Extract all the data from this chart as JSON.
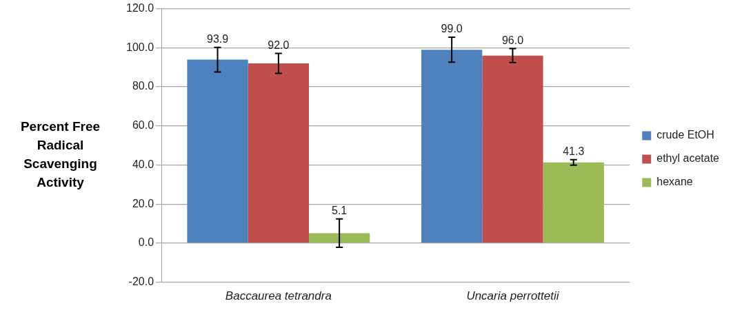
{
  "chart_data": {
    "type": "bar",
    "ylabel": "Percent  Free Radical Scavenging Activity",
    "categories": [
      "Baccaurea tetrandra",
      "Uncaria perrottetii"
    ],
    "series": [
      {
        "name": "crude EtOH",
        "color": "#4f81bd",
        "values": [
          93.9,
          99.0
        ],
        "errors": [
          6.3,
          6.4
        ],
        "value_labels": [
          "93.9",
          "99.0"
        ]
      },
      {
        "name": "ethyl acetate",
        "color": "#c0504d",
        "values": [
          92.0,
          96.0
        ],
        "errors": [
          5.1,
          3.6
        ],
        "value_labels": [
          "92.0",
          "96.0"
        ]
      },
      {
        "name": "hexane",
        "color": "#9bbb59",
        "values": [
          5.1,
          41.3
        ],
        "errors": [
          7.3,
          1.4
        ],
        "value_labels": [
          "5.1",
          "41.3"
        ]
      }
    ],
    "ylim": [
      -20,
      120
    ],
    "yticks": [
      {
        "value": -20,
        "label": "-20.0"
      },
      {
        "value": 0,
        "label": "0.0"
      },
      {
        "value": 20,
        "label": "20.0"
      },
      {
        "value": 40,
        "label": "40.0"
      },
      {
        "value": 60,
        "label": "60.0"
      },
      {
        "value": 80,
        "label": "80.0"
      },
      {
        "value": 100,
        "label": "100.0"
      },
      {
        "value": 120,
        "label": "120.0"
      }
    ],
    "grid": "y",
    "legend": "right"
  }
}
